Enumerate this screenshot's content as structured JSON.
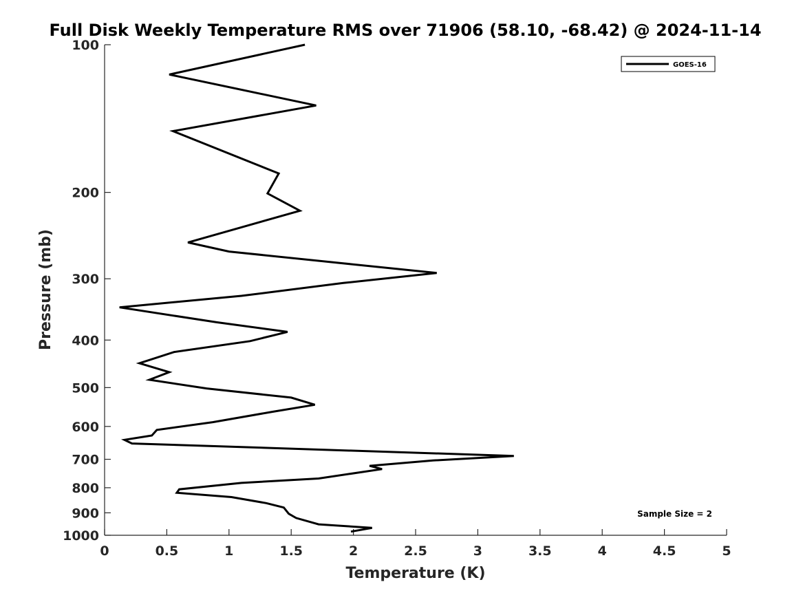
{
  "chart_data": {
    "type": "line",
    "title": "Full Disk Weekly Temperature RMS over 71906 (58.10, -68.42) @ 2024-11-14",
    "xlabel": "Temperature (K)",
    "ylabel": "Pressure (mb)",
    "xlim": [
      0,
      5
    ],
    "ylim": [
      100,
      1000
    ],
    "yscale": "log",
    "y_reversed": true,
    "xticks": [
      "0",
      "0.5",
      "1",
      "1.5",
      "2",
      "2.5",
      "3",
      "3.5",
      "4",
      "4.5",
      "5"
    ],
    "yticks": [
      "100",
      "200",
      "300",
      "400",
      "500",
      "600",
      "700",
      "800",
      "900",
      "1000"
    ],
    "grid": false,
    "legend": {
      "position": "top-right",
      "entries": [
        "GOES-16"
      ]
    },
    "annotation": "Sample Size = 2",
    "series": [
      {
        "name": "GOES-16",
        "color": "#000000",
        "points": [
          [
            1.61,
            100.0
          ],
          [
            0.52,
            115.0
          ],
          [
            1.7,
            133.0
          ],
          [
            0.55,
            150.0
          ],
          [
            1.4,
            183.0
          ],
          [
            1.31,
            201.0
          ],
          [
            1.57,
            218.0
          ],
          [
            0.67,
            253.0
          ],
          [
            1.0,
            264.0
          ],
          [
            2.67,
            292.0
          ],
          [
            1.92,
            306.0
          ],
          [
            1.1,
            325.0
          ],
          [
            0.12,
            343.0
          ],
          [
            0.9,
            368.0
          ],
          [
            1.47,
            385.0
          ],
          [
            1.17,
            402.0
          ],
          [
            0.56,
            423.0
          ],
          [
            0.28,
            446.0
          ],
          [
            0.52,
            465.0
          ],
          [
            0.36,
            482.0
          ],
          [
            0.82,
            502.0
          ],
          [
            1.5,
            524.0
          ],
          [
            1.69,
            542.0
          ],
          [
            1.35,
            560.0
          ],
          [
            0.87,
            588.0
          ],
          [
            0.42,
            610.0
          ],
          [
            0.38,
            626.0
          ],
          [
            0.16,
            639.0
          ],
          [
            0.22,
            650.0
          ],
          [
            3.29,
            689.0
          ],
          [
            2.64,
            704.0
          ],
          [
            2.13,
            722.0
          ],
          [
            2.23,
            733.0
          ],
          [
            1.72,
            766.0
          ],
          [
            1.1,
            782.0
          ],
          [
            0.6,
            806.0
          ],
          [
            0.58,
            819.0
          ],
          [
            1.02,
            836.0
          ],
          [
            1.3,
            860.0
          ],
          [
            1.44,
            878.0
          ],
          [
            1.48,
            904.0
          ],
          [
            1.54,
            922.0
          ],
          [
            1.72,
            950.0
          ],
          [
            2.15,
            966.0
          ],
          [
            1.98,
            983.0
          ]
        ]
      }
    ]
  }
}
